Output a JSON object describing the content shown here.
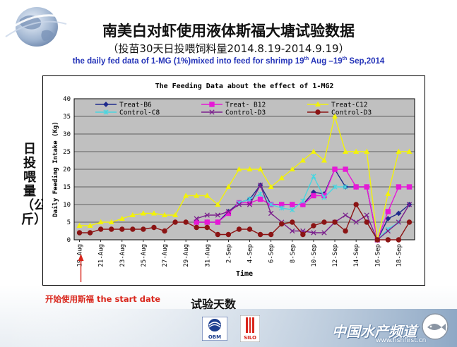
{
  "header": {
    "title_cn": "南美白对虾使用液体斯福大塘试验数据",
    "subtitle_cn": "（投苗30天日投喂饲料量2014.8.19-2014.9.19）",
    "title_en_main": "the daily fed data of 1-MG (1%)mixed into feed for shrimp 19",
    "title_en_sup1": "th",
    "title_en_mid": " Aug –19",
    "title_en_sup2": "th",
    "title_en_end": " Sep,2014"
  },
  "side_label_cn": "日投喂量（公斤）",
  "x_label_cn": "试验天数",
  "start_note": "开始使用斯福  the start date",
  "footer": {
    "brand_cn": "中国水产频道",
    "brand_url": "www.fishfirst.cn",
    "logo1": "OBM",
    "logo2": "SILO"
  },
  "colors": {
    "plot_bg": "#c0c0c0",
    "note_red": "#d9261c",
    "title_blue": "#2433b8"
  },
  "chart_data": {
    "type": "line",
    "title": "The Feeding Data about the effect of 1-MG2",
    "xlabel": "Time",
    "ylabel": "Daily Feeding Intake (Kg)",
    "ylim": [
      0,
      40
    ],
    "yticks": [
      0,
      5,
      10,
      15,
      20,
      25,
      30,
      35,
      40
    ],
    "grid": true,
    "legend": "top",
    "categories": [
      "19-Aug",
      "20-Aug",
      "21-Aug",
      "22-Aug",
      "23-Aug",
      "24-Aug",
      "25-Aug",
      "26-Aug",
      "27-Aug",
      "28-Aug",
      "29-Aug",
      "30-Aug",
      "31-Aug",
      "1-Sep",
      "2-Sep",
      "3-Sep",
      "4-Sep",
      "5-Sep",
      "6-Sep",
      "7-Sep",
      "8-Sep",
      "9-Sep",
      "10-Sep",
      "11-Sep",
      "12-Sep",
      "13-Sep",
      "14-Sep",
      "15-Sep",
      "16-Sep",
      "17-Sep",
      "18-Sep",
      "19-Sep"
    ],
    "tick_labels": [
      "19-Aug",
      "21-Aug",
      "23-Aug",
      "25-Aug",
      "27-Aug",
      "29-Aug",
      "31-Aug",
      "2-Sep",
      "4-Sep",
      "6-Sep",
      "8-Sep",
      "10-Sep",
      "12-Sep",
      "14-Sep",
      "16-Sep",
      "18-Sep"
    ],
    "start_index": 0,
    "series": [
      {
        "name": "Treat-B6",
        "color": "#1f2a8c",
        "marker": "diamond",
        "values": [
          null,
          null,
          null,
          null,
          null,
          null,
          null,
          null,
          null,
          null,
          null,
          5,
          5,
          5,
          8,
          10.5,
          11.5,
          15.5,
          10,
          10,
          10,
          10,
          13.5,
          13,
          20,
          15,
          15,
          15,
          0,
          6,
          7.5,
          10
        ]
      },
      {
        "name": "Treat- B12",
        "color": "#e619d6",
        "marker": "square",
        "values": [
          null,
          null,
          null,
          null,
          null,
          null,
          null,
          null,
          null,
          null,
          null,
          5,
          5,
          5,
          7.5,
          10.5,
          10.5,
          11.5,
          10,
          10,
          10,
          10,
          12.5,
          12.5,
          20,
          20,
          15,
          15,
          0,
          8,
          15,
          15
        ]
      },
      {
        "name": "Treat-C12",
        "color": "#f2f20a",
        "marker": "triangle",
        "values": [
          4,
          4,
          5,
          5,
          6,
          7,
          7.5,
          7.5,
          7,
          7,
          12.5,
          12.5,
          12.5,
          10,
          15,
          20,
          20,
          20,
          15,
          17.5,
          20,
          22.5,
          25,
          22.5,
          35,
          25,
          25,
          25,
          0,
          13,
          25,
          25
        ]
      },
      {
        "name": "Control-C8",
        "color": "#48d6e0",
        "marker": "star",
        "values": [
          null,
          null,
          null,
          null,
          null,
          null,
          null,
          null,
          null,
          null,
          null,
          null,
          null,
          null,
          null,
          10.5,
          11.5,
          13,
          10,
          9,
          8.5,
          11,
          18,
          12,
          15,
          15,
          null,
          null,
          0,
          3,
          5,
          null
        ]
      },
      {
        "name": "Control-D3",
        "color": "#7a1e8c",
        "marker": "x",
        "values": [
          null,
          null,
          null,
          null,
          null,
          null,
          null,
          null,
          null,
          null,
          null,
          6,
          7,
          7,
          8,
          10,
          10,
          15.5,
          7.5,
          5,
          2.5,
          2.5,
          2,
          2,
          5,
          7,
          5,
          7,
          0,
          2.5,
          5,
          10
        ]
      },
      {
        "name": "Control-D3",
        "color": "#8b1414",
        "marker": "circle",
        "values": [
          2,
          2,
          3,
          3,
          3,
          3,
          3,
          3.5,
          2.5,
          5,
          5,
          3.5,
          3.5,
          1.5,
          1.5,
          3,
          3,
          1.5,
          1.5,
          4.5,
          5,
          1.5,
          4,
          5,
          5,
          2.5,
          10,
          5,
          0,
          0,
          0,
          5
        ]
      }
    ]
  }
}
